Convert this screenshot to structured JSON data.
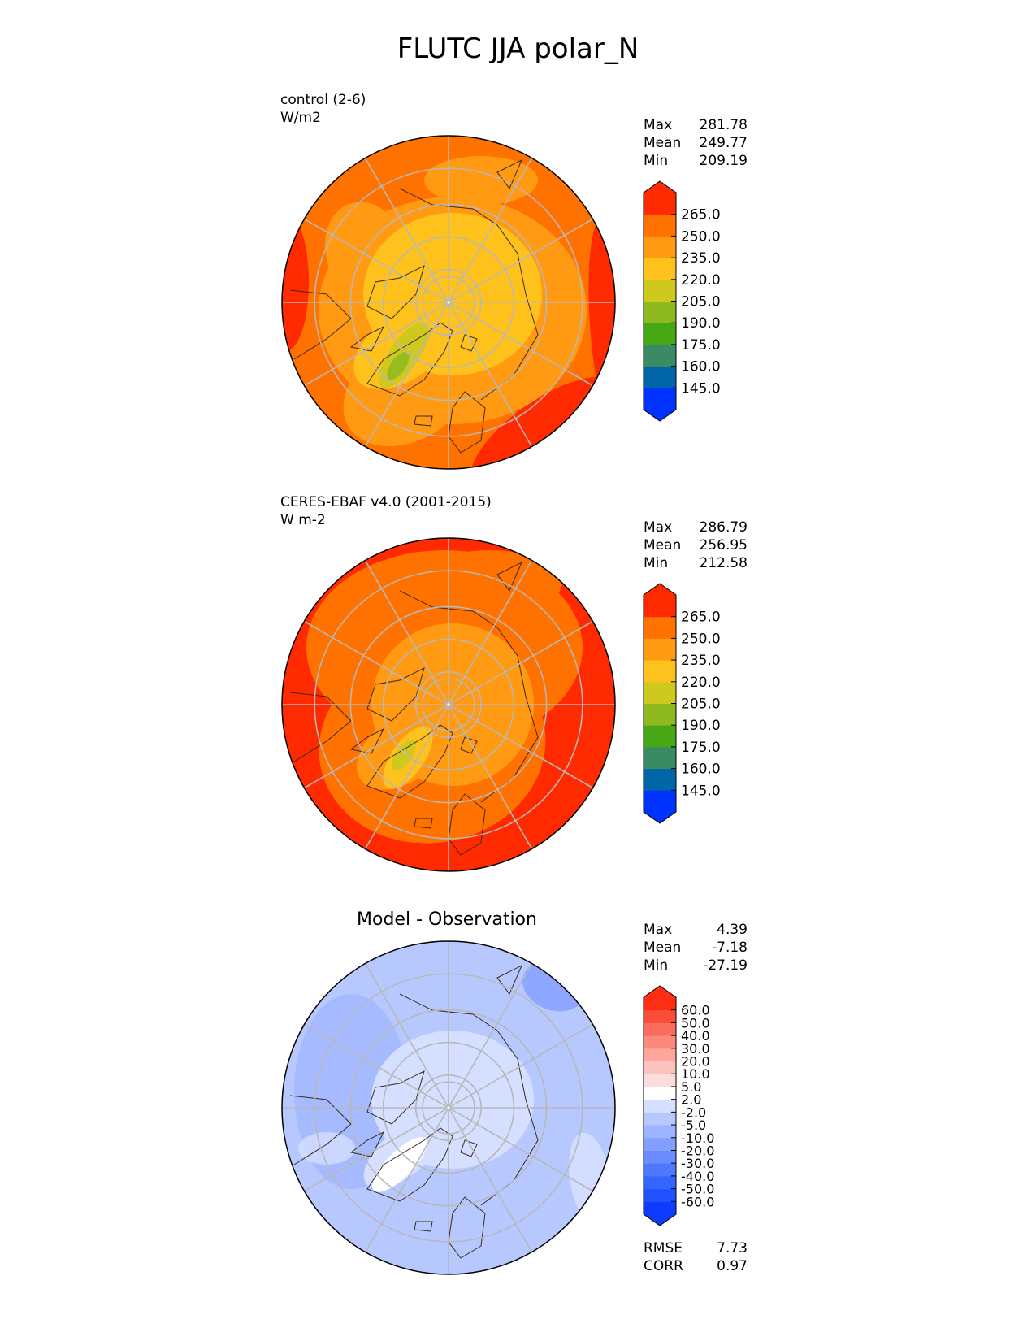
{
  "title": "FLUTC JJA polar_N",
  "colors": {
    "seq": [
      "#0032ff",
      "#0066a8",
      "#3a8a66",
      "#47a816",
      "#8fba1f",
      "#cfc81e",
      "#ffc21c",
      "#ff9a12",
      "#ff7200",
      "#ff2a00"
    ],
    "diff": [
      "#0e3bff",
      "#2252ff",
      "#3565ff",
      "#4e79ff",
      "#6a8cff",
      "#829eff",
      "#9eb4ff",
      "#b7c8ff",
      "#d5dfff",
      "#ffffff",
      "#fbdddd",
      "#fcc3be",
      "#fca69c",
      "#fc8a7c",
      "#fb6c5c",
      "#fb4e3a",
      "#ff2d12"
    ],
    "grid": "#b8b8b8",
    "coast": "#3a2a1a"
  },
  "panels": [
    {
      "label": "control (2-6)",
      "units": "W/m2",
      "stats": [
        [
          "Max",
          "281.78"
        ],
        [
          "Mean",
          "249.77"
        ],
        [
          "Min",
          "209.19"
        ]
      ],
      "colorbar": "seq",
      "ticks": [
        "265.0",
        "250.0",
        "235.0",
        "220.0",
        "205.0",
        "190.0",
        "175.0",
        "160.0",
        "145.0"
      ],
      "field": "control"
    },
    {
      "label": "CERES-EBAF v4.0 (2001-2015)",
      "units": "W m-2",
      "stats": [
        [
          "Max",
          "286.79"
        ],
        [
          "Mean",
          "256.95"
        ],
        [
          "Min",
          "212.58"
        ]
      ],
      "colorbar": "seq",
      "ticks": [
        "265.0",
        "250.0",
        "235.0",
        "220.0",
        "205.0",
        "190.0",
        "175.0",
        "160.0",
        "145.0"
      ],
      "field": "obs"
    },
    {
      "title": "Model - Observation",
      "stats": [
        [
          "Max",
          "4.39"
        ],
        [
          "Mean",
          "-7.18"
        ],
        [
          "Min",
          "-27.19"
        ]
      ],
      "colorbar": "diff",
      "ticks": [
        "60.0",
        "50.0",
        "40.0",
        "30.0",
        "20.0",
        "10.0",
        "5.0",
        "2.0",
        "-2.0",
        "-5.0",
        "-10.0",
        "-20.0",
        "-30.0",
        "-40.0",
        "-50.0",
        "-60.0"
      ],
      "extra_stats": [
        [
          "RMSE",
          "7.73"
        ],
        [
          "CORR",
          "0.97"
        ]
      ],
      "field": "diff"
    }
  ]
}
